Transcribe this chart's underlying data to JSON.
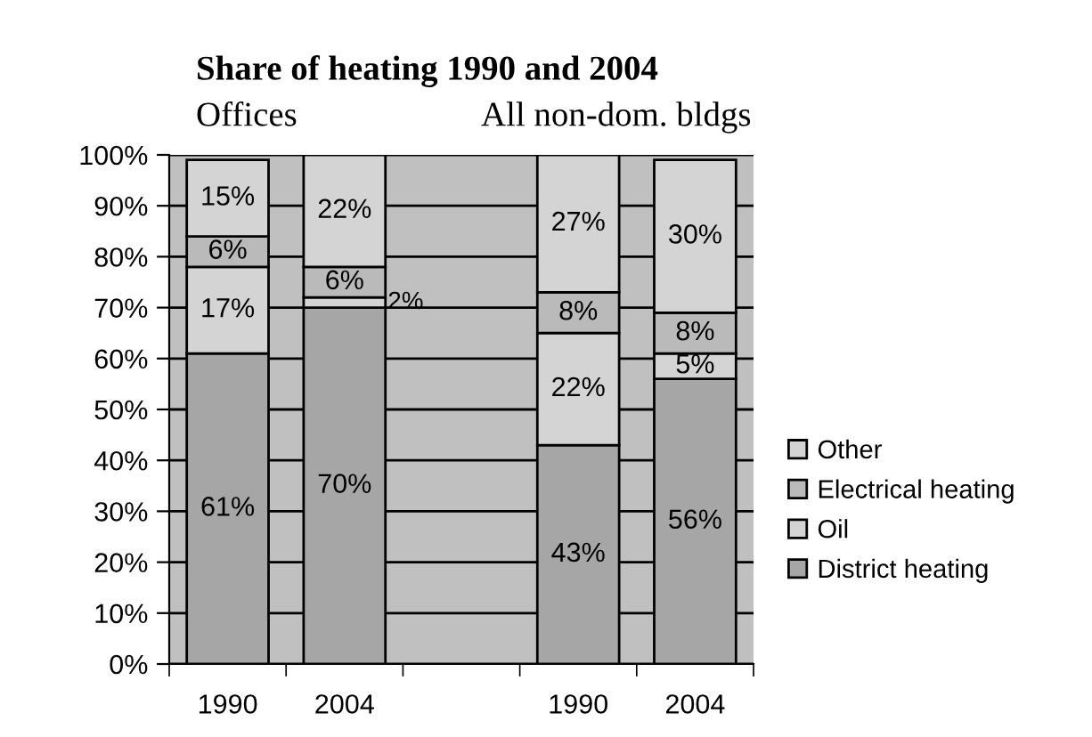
{
  "chart_data": {
    "type": "bar",
    "title": "Share of heating 1990 and 2004",
    "annotations": [
      "Offices",
      "All non-dom. bldgs"
    ],
    "categories": [
      "1990",
      "2004",
      null,
      "1990",
      "2004"
    ],
    "stacked": true,
    "series": [
      {
        "name": "District heating",
        "color": "#a6a6a6",
        "values": [
          61,
          70,
          null,
          43,
          56
        ],
        "value_labels": [
          "61%",
          "70%",
          null,
          "43%",
          "56%"
        ]
      },
      {
        "name": "Oil",
        "color": "#d4d4d4",
        "values": [
          17,
          2,
          null,
          22,
          5
        ],
        "value_labels": [
          "17%",
          "2%",
          null,
          "22%",
          "5%"
        ]
      },
      {
        "name": "Electrical heating",
        "color": "#bababa",
        "values": [
          6,
          6,
          null,
          8,
          8
        ],
        "value_labels": [
          "6%",
          "6%",
          null,
          "8%",
          "8%"
        ]
      },
      {
        "name": "Other",
        "color": "#d4d4d4",
        "values": [
          15,
          22,
          null,
          27,
          30
        ],
        "value_labels": [
          "15%",
          "22%",
          null,
          "27%",
          "30%"
        ]
      }
    ],
    "ylim": [
      0,
      100
    ],
    "yticks": [
      {
        "value": 0,
        "label": "0%"
      },
      {
        "value": 10,
        "label": "10%"
      },
      {
        "value": 20,
        "label": "20%"
      },
      {
        "value": 30,
        "label": "30%"
      },
      {
        "value": 40,
        "label": "40%"
      },
      {
        "value": 50,
        "label": "50%"
      },
      {
        "value": 60,
        "label": "60%"
      },
      {
        "value": 70,
        "label": "70%"
      },
      {
        "value": 80,
        "label": "80%"
      },
      {
        "value": 90,
        "label": "90%"
      },
      {
        "value": 100,
        "label": "100%"
      }
    ],
    "grid": "y",
    "legend": "right"
  }
}
